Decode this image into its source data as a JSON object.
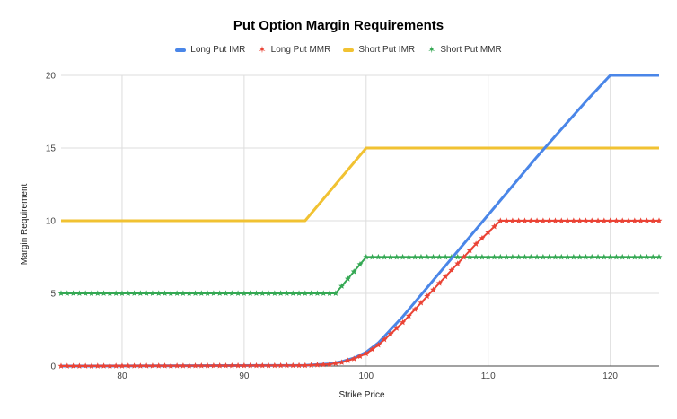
{
  "chart_data": {
    "type": "line",
    "title": "Put Option Margin Requirements",
    "xlabel": "Strike Price",
    "ylabel": "Margin Requirement",
    "xlim": [
      75,
      124
    ],
    "ylim": [
      0,
      20
    ],
    "x_ticks": [
      "80",
      "90",
      "100",
      "110",
      "120"
    ],
    "y_ticks": [
      "0",
      "5",
      "10",
      "15",
      "20"
    ],
    "grid": true,
    "legend_position": "top",
    "series": [
      {
        "name": "Long Put IMR",
        "color": "#4a86e8",
        "marker": "none",
        "points": [
          [
            75,
            0
          ],
          [
            95,
            0.05
          ],
          [
            97,
            0.15
          ],
          [
            98,
            0.3
          ],
          [
            99,
            0.55
          ],
          [
            100,
            0.95
          ],
          [
            101,
            1.6
          ],
          [
            102,
            2.5
          ],
          [
            103,
            3.4
          ],
          [
            104,
            4.4
          ],
          [
            105,
            5.4
          ],
          [
            106,
            6.4
          ],
          [
            108,
            8.4
          ],
          [
            110,
            10.4
          ],
          [
            112,
            12.4
          ],
          [
            114,
            14.4
          ],
          [
            116,
            16.3
          ],
          [
            118,
            18.2
          ],
          [
            120,
            20
          ],
          [
            124,
            20
          ]
        ]
      },
      {
        "name": "Long Put MMR",
        "color": "#ea4335",
        "marker": "star",
        "points": [
          [
            75,
            0
          ],
          [
            95,
            0.04
          ],
          [
            97,
            0.12
          ],
          [
            98,
            0.25
          ],
          [
            99,
            0.5
          ],
          [
            100,
            0.85
          ],
          [
            101,
            1.45
          ],
          [
            102,
            2.2
          ],
          [
            103,
            3.0
          ],
          [
            104,
            3.9
          ],
          [
            105,
            4.8
          ],
          [
            106,
            5.7
          ],
          [
            107,
            6.6
          ],
          [
            108,
            7.5
          ],
          [
            109,
            8.4
          ],
          [
            110,
            9.2
          ],
          [
            111,
            10
          ],
          [
            124,
            10
          ]
        ]
      },
      {
        "name": "Short Put IMR",
        "color": "#f1c232",
        "marker": "none",
        "points": [
          [
            75,
            10
          ],
          [
            95,
            10
          ],
          [
            100,
            15
          ],
          [
            124,
            15
          ]
        ]
      },
      {
        "name": "Short Put MMR",
        "color": "#34a853",
        "marker": "star",
        "points": [
          [
            75,
            5
          ],
          [
            97.5,
            5
          ],
          [
            100,
            7.5
          ],
          [
            124,
            7.5
          ]
        ]
      }
    ]
  }
}
